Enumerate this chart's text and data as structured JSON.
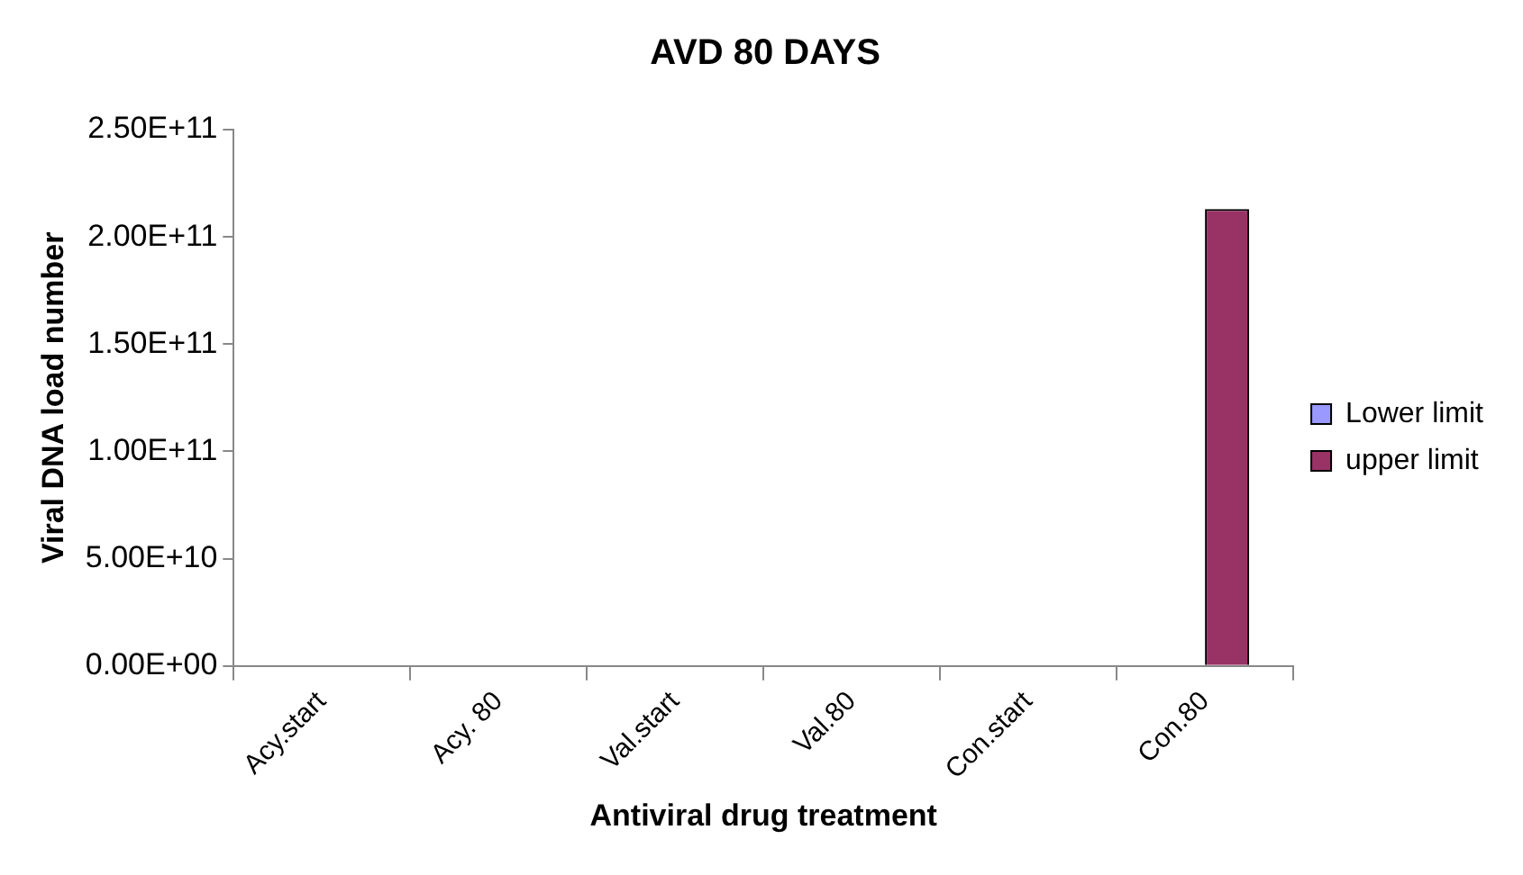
{
  "chart_data": {
    "type": "bar",
    "title": "AVD 80 DAYS",
    "xlabel": "Antiviral drug treatment",
    "ylabel": "Viral DNA load number",
    "categories": [
      "Acy.start",
      "Acy. 80",
      "Val.start",
      "Val.80",
      "Con.start",
      "Con.80"
    ],
    "series": [
      {
        "name": "Lower limit",
        "color": "#9999ff",
        "values": [
          0,
          0,
          0,
          0,
          0,
          0
        ]
      },
      {
        "name": "upper limit",
        "color": "#993366",
        "values": [
          0,
          0,
          0,
          0,
          0,
          213000000000.0
        ]
      }
    ],
    "ylim": [
      0,
      250000000000.0
    ],
    "yticks": [
      {
        "value": 0,
        "label": "0.00E+00"
      },
      {
        "value": 50000000000.0,
        "label": "5.00E+10"
      },
      {
        "value": 100000000000.0,
        "label": "1.00E+11"
      },
      {
        "value": 150000000000.0,
        "label": "1.50E+11"
      },
      {
        "value": 200000000000.0,
        "label": "2.00E+11"
      },
      {
        "value": 250000000000.0,
        "label": "2.50E+11"
      }
    ],
    "grid": false,
    "legend": "right"
  }
}
